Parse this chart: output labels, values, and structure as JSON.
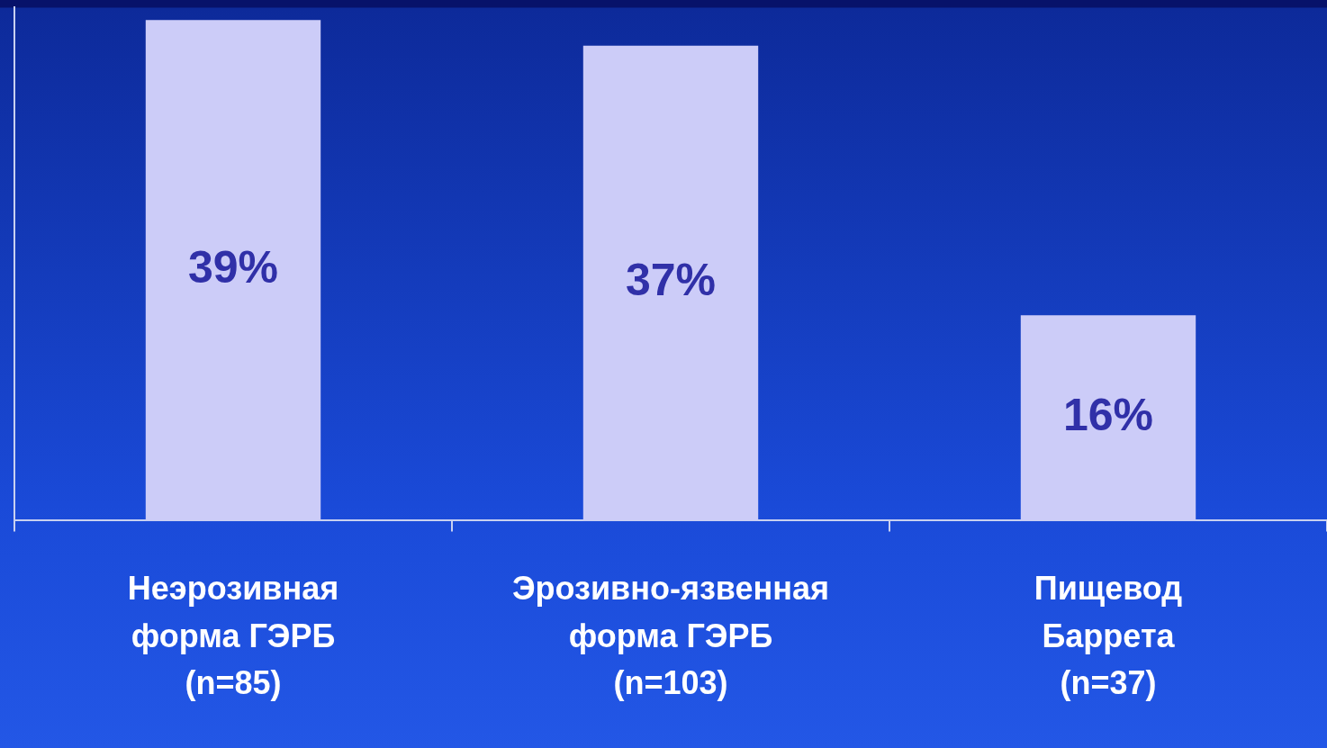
{
  "chart_data": {
    "type": "bar",
    "categories": [
      "Неэрозивная\nформа ГЭРБ\n(n=85)",
      "Эрозивно-язвенная\nформа ГЭРБ\n(n=103)",
      "Пищевод\nБаррета\n(n=37)"
    ],
    "values": [
      39,
      37,
      16
    ],
    "color": "#ccccf8",
    "value_labels": [
      "39%",
      "37%",
      "16%"
    ],
    "tick_labels": "x"
  }
}
